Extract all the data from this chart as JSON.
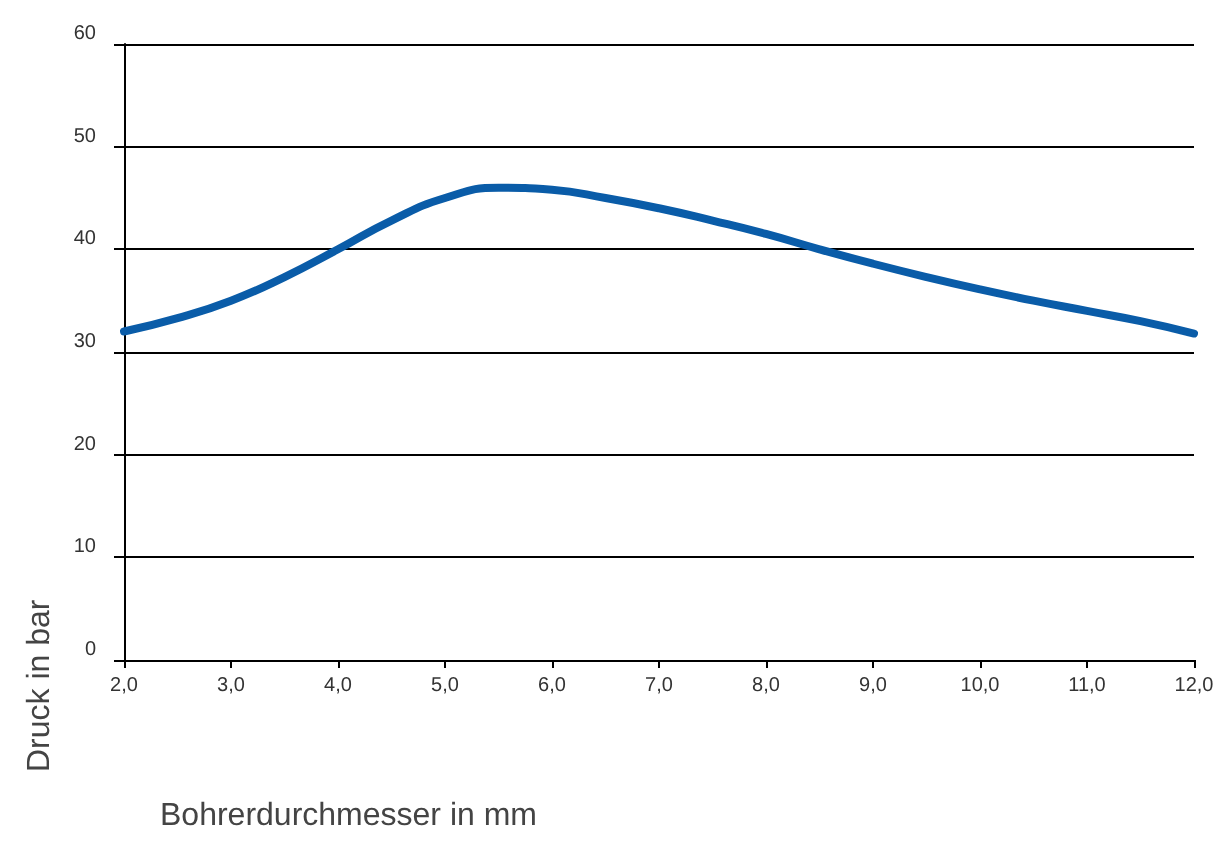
{
  "chart_data": {
    "type": "line",
    "xlabel": "Bohrerdurchmesser in mm",
    "ylabel": "Druck in bar",
    "x": [
      2,
      2.5,
      3,
      3.5,
      4,
      4.5,
      5,
      5.5,
      6,
      6.5,
      7,
      7.5,
      8,
      8.5,
      9,
      9.5,
      10,
      10.5,
      11,
      11.5,
      12
    ],
    "series": [
      {
        "color": "#0a5ca8",
        "values": [
          32,
          33.3,
          35,
          37.3,
          40,
          42.8,
          45,
          46,
          45.8,
          45,
          44,
          42.8,
          41.5,
          40,
          38.6,
          37.3,
          36.1,
          35,
          34,
          33,
          31.8
        ]
      }
    ],
    "xlim": [
      2,
      12
    ],
    "xticks": [
      {
        "value": 2,
        "label": "2,0"
      },
      {
        "value": 3,
        "label": "3,0"
      },
      {
        "value": 4,
        "label": "4,0"
      },
      {
        "value": 5,
        "label": "5,0"
      },
      {
        "value": 6,
        "label": "6,0"
      },
      {
        "value": 7,
        "label": "7,0"
      },
      {
        "value": 8,
        "label": "8,0"
      },
      {
        "value": 9,
        "label": "9,0"
      },
      {
        "value": 10,
        "label": "10,0"
      },
      {
        "value": 11,
        "label": "11,0"
      },
      {
        "value": 12,
        "label": "12,0"
      }
    ],
    "ylim": [
      0,
      60
    ],
    "yticks": [
      0,
      10,
      20,
      30,
      40,
      50,
      60
    ],
    "grid": "y",
    "marker": "none",
    "line_style": "solid"
  }
}
